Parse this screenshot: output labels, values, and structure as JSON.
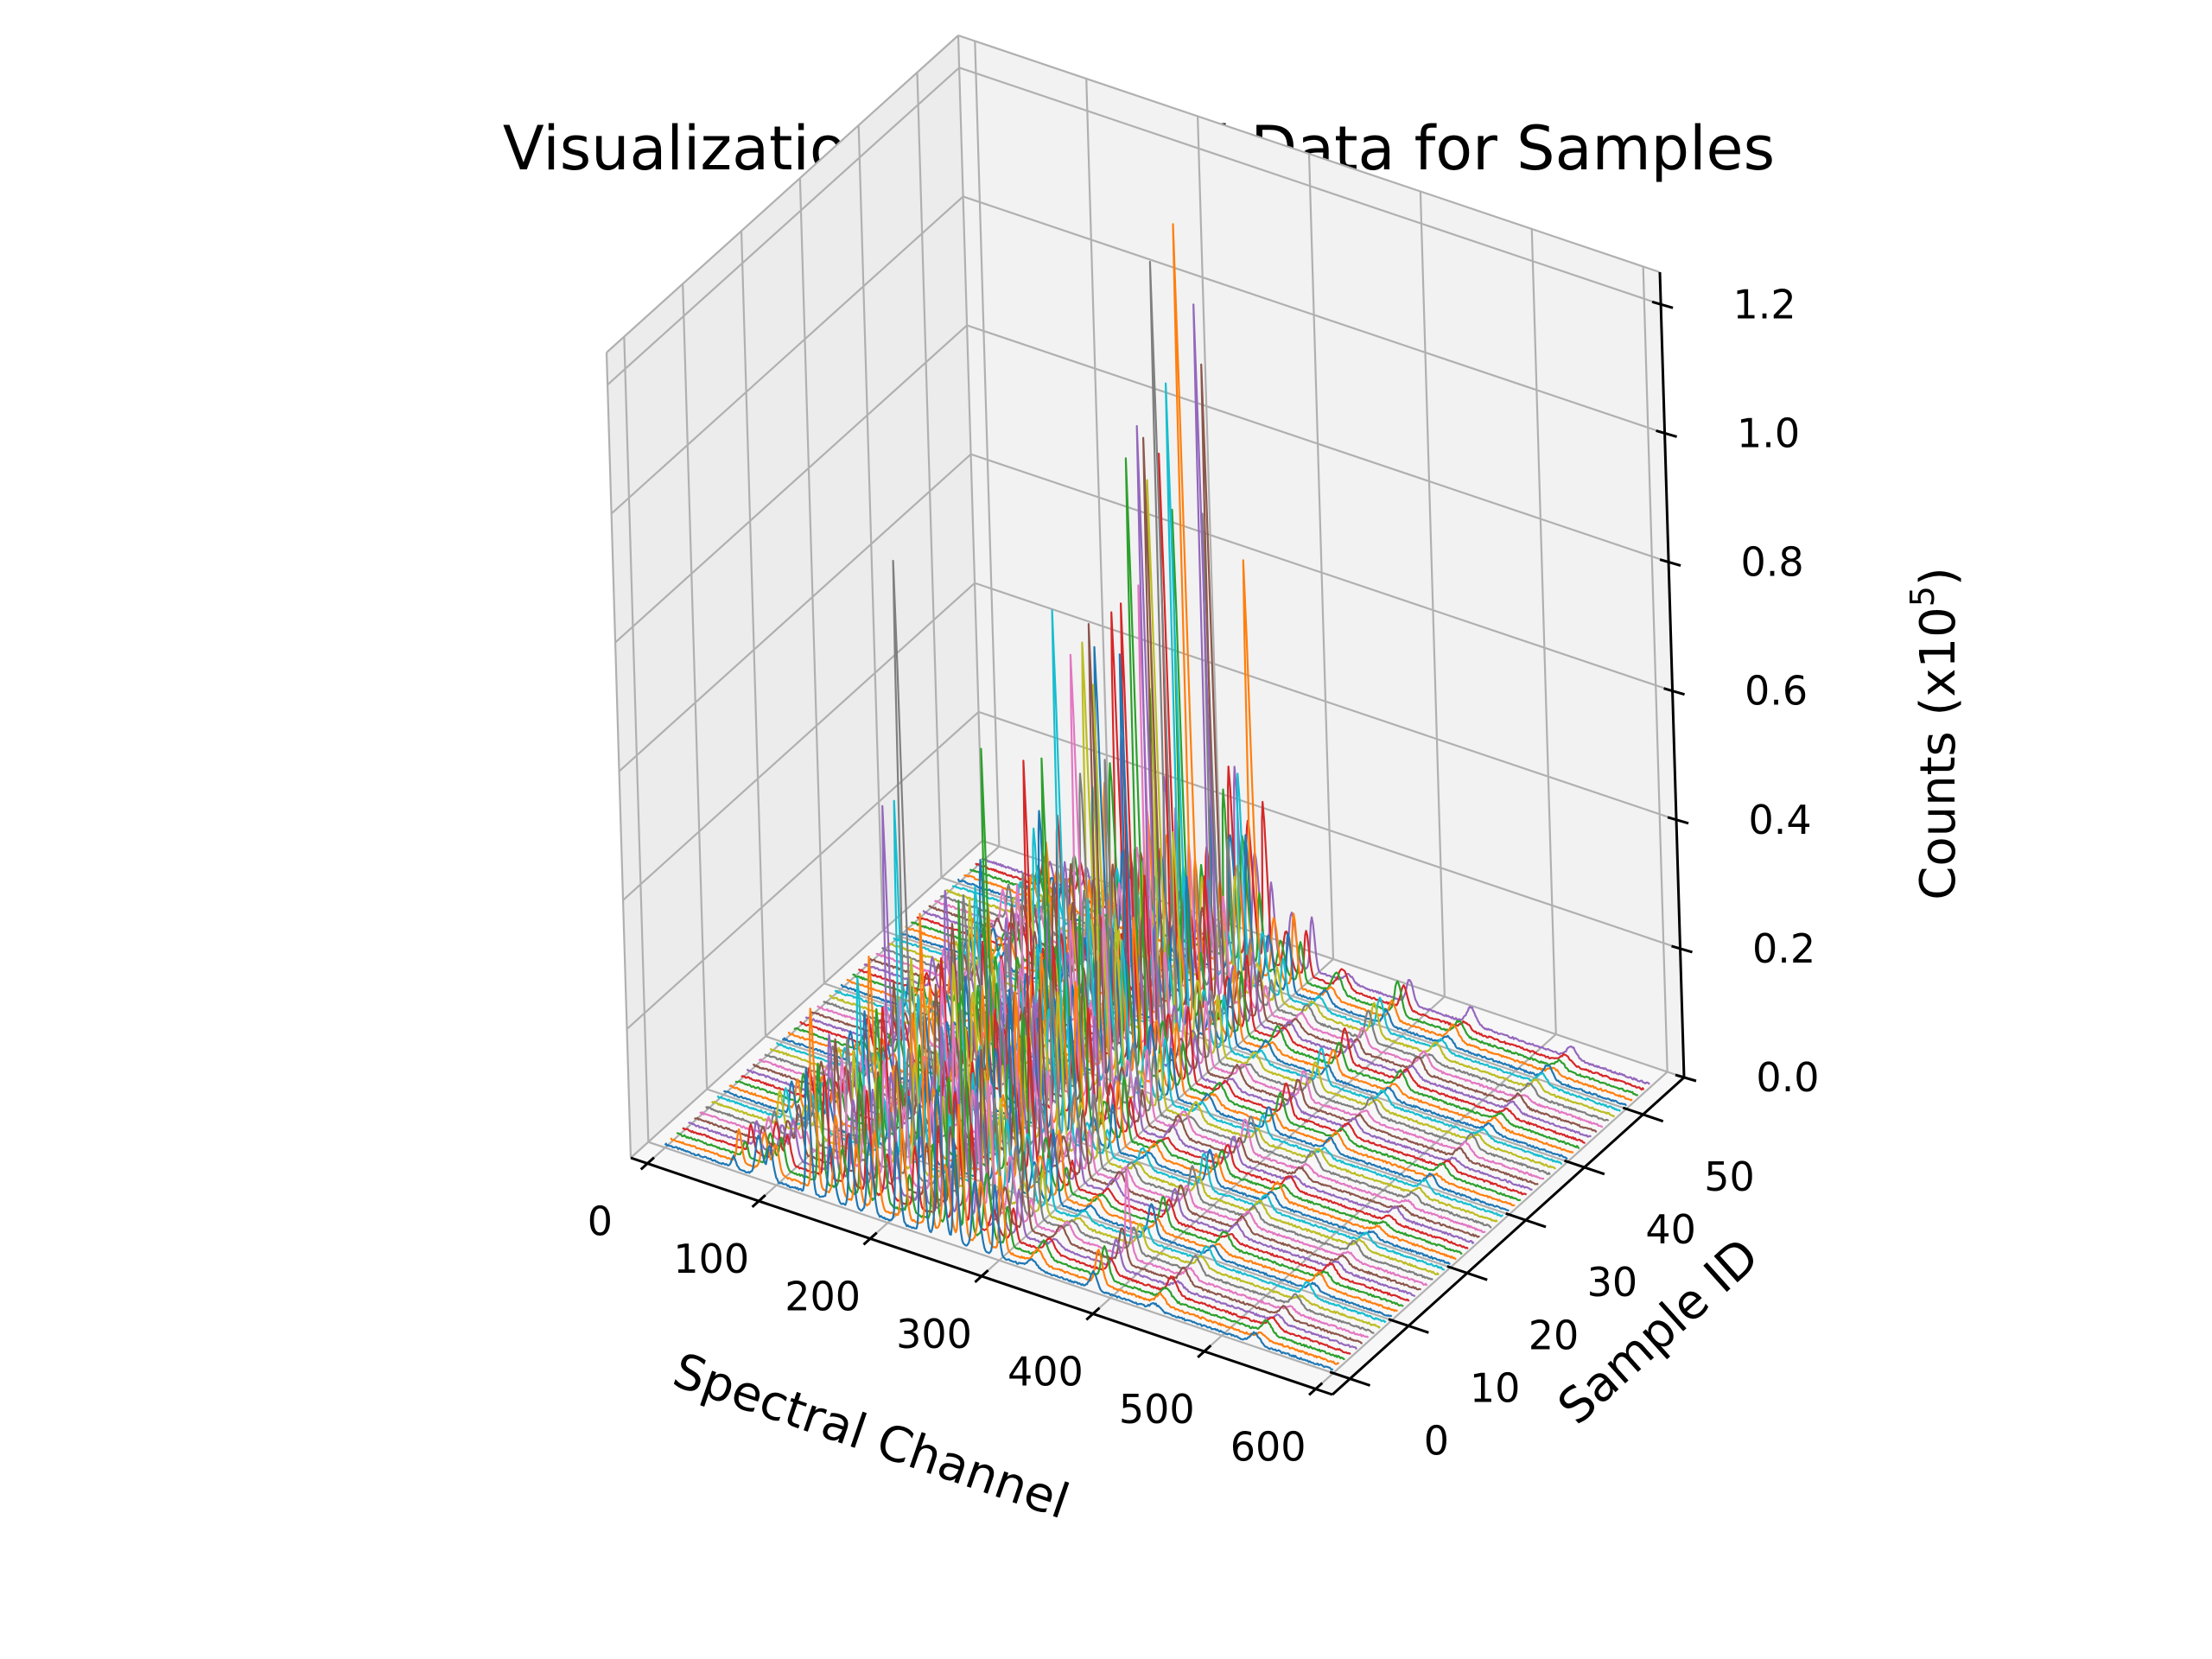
{
  "chart_data": {
    "type": "line",
    "projection": "3d",
    "title": "Visualization of Spectral Data for Samples",
    "xlabel": "Spectral Channel",
    "ylabel": "Sample ID",
    "zlabel": "Counts (x10",
    "zlabel_exponent": "5",
    "zlabel_suffix": ")",
    "x_ticks": [
      "0",
      "100",
      "200",
      "300",
      "400",
      "500",
      "600"
    ],
    "y_ticks": [
      "0",
      "10",
      "20",
      "30",
      "40",
      "50"
    ],
    "z_ticks": [
      "0.0",
      "0.2",
      "0.4",
      "0.6",
      "0.8",
      "1.0",
      "1.2"
    ],
    "xlim": [
      -15,
      615
    ],
    "ylim": [
      -3,
      57
    ],
    "zlim": [
      0,
      1.25
    ],
    "grid": true,
    "sample_count": 55,
    "channel_count": 600,
    "series_colors": [
      "#1f77b4",
      "#ff7f0e",
      "#2ca02c",
      "#d62728",
      "#9467bd",
      "#8c564b",
      "#e377c2",
      "#7f7f7f",
      "#bcbd22",
      "#17becf"
    ],
    "peaks": [
      {
        "channel": 62,
        "width": 2.0,
        "height": 0.05
      },
      {
        "channel": 85,
        "width": 3.0,
        "height": 0.06
      },
      {
        "channel": 95,
        "width": 2.5,
        "height": 0.07
      },
      {
        "channel": 130,
        "width": 2.0,
        "height": 0.28
      },
      {
        "channel": 150,
        "width": 2.5,
        "height": 0.12
      },
      {
        "channel": 168,
        "width": 2.0,
        "height": 0.22
      },
      {
        "channel": 185,
        "width": 2.5,
        "height": 0.18
      },
      {
        "channel": 210,
        "width": 2.0,
        "height": 0.14
      },
      {
        "channel": 232,
        "width": 2.0,
        "height": 0.27
      },
      {
        "channel": 248,
        "width": 3.0,
        "height": 0.22
      },
      {
        "channel": 262,
        "width": 2.0,
        "height": 0.3
      },
      {
        "channel": 280,
        "width": 3.0,
        "height": 0.1
      },
      {
        "channel": 298,
        "width": 2.0,
        "height": 0.11
      },
      {
        "channel": 330,
        "width": 4.0,
        "height": 0.03
      },
      {
        "channel": 385,
        "width": 3.0,
        "height": 0.05
      },
      {
        "channel": 440,
        "width": 4.0,
        "height": 0.025
      },
      {
        "channel": 530,
        "width": 4.0,
        "height": 0.02
      }
    ],
    "highlights": [
      {
        "sample": 1,
        "channel": 232,
        "height": 0.34
      },
      {
        "sample": 2,
        "channel": 262,
        "height": 0.31
      },
      {
        "sample": 6,
        "channel": 385,
        "height": 0.09
      },
      {
        "sample": 9,
        "channel": 168,
        "height": 0.34
      },
      {
        "sample": 12,
        "channel": 232,
        "height": 0.55
      },
      {
        "sample": 14,
        "channel": 130,
        "height": 0.36
      },
      {
        "sample": 17,
        "channel": 130,
        "height": 0.62
      },
      {
        "sample": 19,
        "channel": 262,
        "height": 0.5
      },
      {
        "sample": 22,
        "channel": 232,
        "height": 0.42
      },
      {
        "sample": 23,
        "channel": 210,
        "height": 0.38
      },
      {
        "sample": 25,
        "channel": 262,
        "height": 0.45
      },
      {
        "sample": 27,
        "channel": 262,
        "height": 0.42
      },
      {
        "sample": 28,
        "channel": 248,
        "height": 0.4
      },
      {
        "sample": 30,
        "channel": 262,
        "height": 0.5
      },
      {
        "sample": 32,
        "channel": 262,
        "height": 0.7
      },
      {
        "sample": 33,
        "channel": 248,
        "height": 0.52
      },
      {
        "sample": 34,
        "channel": 262,
        "height": 0.75
      },
      {
        "sample": 35,
        "channel": 262,
        "height": 0.8
      },
      {
        "sample": 36,
        "channel": 248,
        "height": 0.6
      },
      {
        "sample": 37,
        "channel": 262,
        "height": 1.0
      },
      {
        "sample": 38,
        "channel": 248,
        "height": 0.7
      },
      {
        "sample": 39,
        "channel": 262,
        "height": 0.9
      },
      {
        "sample": 41,
        "channel": 262,
        "height": 1.15
      },
      {
        "sample": 42,
        "channel": 248,
        "height": 0.65
      },
      {
        "sample": 43,
        "channel": 232,
        "height": 0.75
      },
      {
        "sample": 44,
        "channel": 262,
        "height": 0.95
      },
      {
        "sample": 45,
        "channel": 262,
        "height": 0.8
      },
      {
        "sample": 46,
        "channel": 130,
        "height": 0.35
      },
      {
        "sample": 47,
        "channel": 248,
        "height": 0.6
      },
      {
        "sample": 48,
        "channel": 130,
        "height": 0.25
      },
      {
        "sample": 50,
        "channel": 130,
        "height": 0.3
      },
      {
        "sample": 51,
        "channel": 262,
        "height": 0.45
      },
      {
        "sample": 52,
        "channel": 168,
        "height": 0.22
      },
      {
        "sample": 53,
        "channel": 130,
        "height": 0.28
      }
    ]
  }
}
